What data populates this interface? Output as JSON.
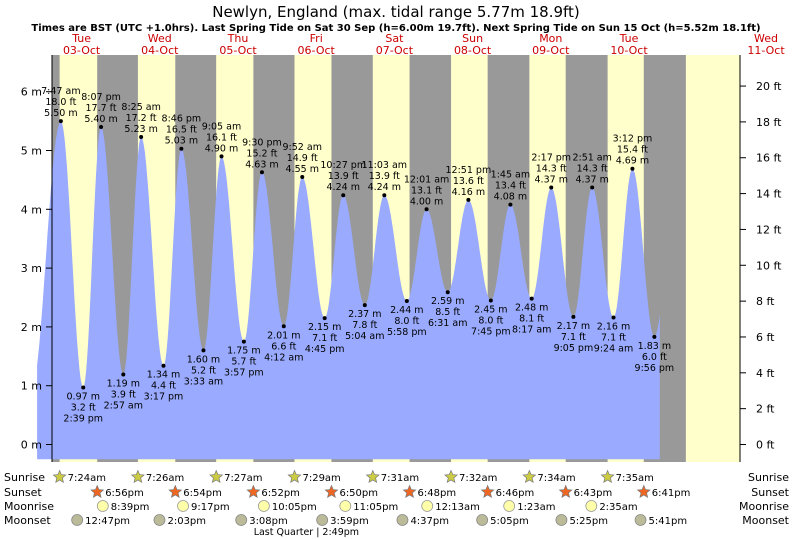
{
  "chart_data": {
    "type": "area",
    "title": "Newlyn, England (max. tidal range 5.77m 18.9ft)",
    "subtitle": "Times are BST (UTC +1.0hrs). Last Spring Tide on Sat 30 Sep (h=6.00m 19.7ft). Next Spring Tide on Sun 15 Oct (h=5.52m 18.1ft)",
    "days": [
      {
        "dow": "Tue",
        "date": "03-Oct"
      },
      {
        "dow": "Wed",
        "date": "04-Oct"
      },
      {
        "dow": "Thu",
        "date": "05-Oct"
      },
      {
        "dow": "Fri",
        "date": "06-Oct"
      },
      {
        "dow": "Sat",
        "date": "07-Oct"
      },
      {
        "dow": "Sun",
        "date": "08-Oct"
      },
      {
        "dow": "Mon",
        "date": "09-Oct"
      },
      {
        "dow": "Tue",
        "date": "10-Oct"
      },
      {
        "dow": "Wed",
        "date": "11-Oct"
      }
    ],
    "y_left_ticks": [
      "0 m",
      "1 m",
      "2 m",
      "3 m",
      "4 m",
      "5 m",
      "6 m"
    ],
    "y_right_ticks": [
      "0 ft",
      "2 ft",
      "4 ft",
      "6 ft",
      "8 ft",
      "10 ft",
      "12 ft",
      "14 ft",
      "16 ft",
      "18 ft",
      "20 ft"
    ],
    "ylim_m": [
      -0.05,
      6.6
    ],
    "tides": [
      {
        "day": 0,
        "hour": 7.783,
        "type": "high",
        "time": "7:47 am",
        "ft": "18.0 ft",
        "m": "5.50 m",
        "h": 5.5
      },
      {
        "day": 0,
        "hour": 14.65,
        "type": "low",
        "time": "2:39 pm",
        "ft": "3.2 ft",
        "m": "0.97 m",
        "h": 0.97
      },
      {
        "day": 0,
        "hour": 20.117,
        "type": "high",
        "time": "8:07 pm",
        "ft": "17.7 ft",
        "m": "5.40 m",
        "h": 5.4
      },
      {
        "day": 1,
        "hour": 2.95,
        "type": "low",
        "time": "2:57 am",
        "ft": "3.9 ft",
        "m": "1.19 m",
        "h": 1.19
      },
      {
        "day": 1,
        "hour": 8.417,
        "type": "high",
        "time": "8:25 am",
        "ft": "17.2 ft",
        "m": "5.23 m",
        "h": 5.23
      },
      {
        "day": 1,
        "hour": 15.283,
        "type": "low",
        "time": "3:17 pm",
        "ft": "4.4 ft",
        "m": "1.34 m",
        "h": 1.34
      },
      {
        "day": 1,
        "hour": 20.767,
        "type": "high",
        "time": "8:46 pm",
        "ft": "16.5 ft",
        "m": "5.03 m",
        "h": 5.03
      },
      {
        "day": 2,
        "hour": 3.55,
        "type": "low",
        "time": "3:33 am",
        "ft": "5.2 ft",
        "m": "1.60 m",
        "h": 1.6
      },
      {
        "day": 2,
        "hour": 9.083,
        "type": "high",
        "time": "9:05 am",
        "ft": "16.1 ft",
        "m": "4.90 m",
        "h": 4.9
      },
      {
        "day": 2,
        "hour": 15.95,
        "type": "low",
        "time": "3:57 pm",
        "ft": "5.7 ft",
        "m": "1.75 m",
        "h": 1.75
      },
      {
        "day": 2,
        "hour": 21.5,
        "type": "high",
        "time": "9:30 pm",
        "ft": "15.2 ft",
        "m": "4.63 m",
        "h": 4.63
      },
      {
        "day": 3,
        "hour": 4.2,
        "type": "low",
        "time": "4:12 am",
        "ft": "6.6 ft",
        "m": "2.01 m",
        "h": 2.01
      },
      {
        "day": 3,
        "hour": 9.867,
        "type": "high",
        "time": "9:52 am",
        "ft": "14.9 ft",
        "m": "4.55 m",
        "h": 4.55
      },
      {
        "day": 3,
        "hour": 16.75,
        "type": "low",
        "time": "4:45 pm",
        "ft": "7.1 ft",
        "m": "2.15 m",
        "h": 2.15
      },
      {
        "day": 3,
        "hour": 22.45,
        "type": "high",
        "time": "10:27 pm",
        "ft": "13.9 ft",
        "m": "4.24 m",
        "h": 4.24
      },
      {
        "day": 4,
        "hour": 5.067,
        "type": "low",
        "time": "5:04 am",
        "ft": "7.8 ft",
        "m": "2.37 m",
        "h": 2.37
      },
      {
        "day": 4,
        "hour": 11.05,
        "type": "high",
        "time": "11:03 am",
        "ft": "13.9 ft",
        "m": "4.24 m",
        "h": 4.24
      },
      {
        "day": 4,
        "hour": 17.967,
        "type": "low",
        "time": "5:58 pm",
        "ft": "8.0 ft",
        "m": "2.44 m",
        "h": 2.44
      },
      {
        "day": 5,
        "hour": 0.017,
        "type": "high",
        "time": "12:01 am",
        "ft": "13.1 ft",
        "m": "4.00 m",
        "h": 4.0
      },
      {
        "day": 5,
        "hour": 6.517,
        "type": "low",
        "time": "6:31 am",
        "ft": "8.5 ft",
        "m": "2.59 m",
        "h": 2.59
      },
      {
        "day": 5,
        "hour": 12.85,
        "type": "high",
        "time": "12:51 pm",
        "ft": "13.6 ft",
        "m": "4.16 m",
        "h": 4.16
      },
      {
        "day": 5,
        "hour": 19.75,
        "type": "low",
        "time": "7:45 pm",
        "ft": "8.0 ft",
        "m": "2.45 m",
        "h": 2.45
      },
      {
        "day": 6,
        "hour": 1.75,
        "type": "high",
        "time": "1:45 am",
        "ft": "13.4 ft",
        "m": "4.08 m",
        "h": 4.08
      },
      {
        "day": 6,
        "hour": 8.283,
        "type": "low",
        "time": "8:17 am",
        "ft": "8.1 ft",
        "m": "2.48 m",
        "h": 2.48
      },
      {
        "day": 6,
        "hour": 14.283,
        "type": "high",
        "time": "2:17 pm",
        "ft": "14.3 ft",
        "m": "4.37 m",
        "h": 4.37
      },
      {
        "day": 6,
        "hour": 21.083,
        "type": "low",
        "time": "9:05 pm",
        "ft": "7.1 ft",
        "m": "2.17 m",
        "h": 2.17
      },
      {
        "day": 7,
        "hour": 2.85,
        "type": "high",
        "time": "2:51 am",
        "ft": "14.3 ft",
        "m": "4.37 m",
        "h": 4.37
      },
      {
        "day": 7,
        "hour": 9.4,
        "type": "low",
        "time": "9:24 am",
        "ft": "7.1 ft",
        "m": "2.16 m",
        "h": 2.16
      },
      {
        "day": 7,
        "hour": 15.2,
        "type": "high",
        "time": "3:12 pm",
        "ft": "15.4 ft",
        "m": "4.69 m",
        "h": 4.69
      },
      {
        "day": 7,
        "hour": 21.933,
        "type": "low",
        "time": "9:56 pm",
        "ft": "6.0 ft",
        "m": "1.83 m",
        "h": 1.83
      }
    ],
    "daylight": [
      {
        "day": 0,
        "rise_hour": 7.4,
        "set_hour": 18.933
      },
      {
        "day": 1,
        "rise_hour": 7.433,
        "set_hour": 18.9
      },
      {
        "day": 2,
        "rise_hour": 7.45,
        "set_hour": 18.867
      },
      {
        "day": 3,
        "rise_hour": 7.483,
        "set_hour": 18.833
      },
      {
        "day": 4,
        "rise_hour": 7.517,
        "set_hour": 18.8
      },
      {
        "day": 5,
        "rise_hour": 7.533,
        "set_hour": 18.767
      },
      {
        "day": 6,
        "rise_hour": 7.567,
        "set_hour": 18.717
      },
      {
        "day": 7,
        "rise_hour": 7.583,
        "set_hour": 18.683
      }
    ],
    "astro_rows": [
      {
        "label": "Sunrise",
        "kind": "sunrise",
        "events": [
          {
            "day": 0,
            "hour": 7.4,
            "time": "7:24am"
          },
          {
            "day": 1,
            "hour": 7.433,
            "time": "7:26am"
          },
          {
            "day": 2,
            "hour": 7.45,
            "time": "7:27am"
          },
          {
            "day": 3,
            "hour": 7.483,
            "time": "7:29am"
          },
          {
            "day": 4,
            "hour": 7.517,
            "time": "7:31am"
          },
          {
            "day": 5,
            "hour": 7.533,
            "time": "7:32am"
          },
          {
            "day": 6,
            "hour": 7.567,
            "time": "7:34am"
          },
          {
            "day": 7,
            "hour": 7.583,
            "time": "7:35am"
          }
        ]
      },
      {
        "label": "Sunset",
        "kind": "sunset",
        "events": [
          {
            "day": 0,
            "hour": 18.933,
            "time": "6:56pm"
          },
          {
            "day": 1,
            "hour": 18.9,
            "time": "6:54pm"
          },
          {
            "day": 2,
            "hour": 18.867,
            "time": "6:52pm"
          },
          {
            "day": 3,
            "hour": 18.833,
            "time": "6:50pm"
          },
          {
            "day": 4,
            "hour": 18.8,
            "time": "6:48pm"
          },
          {
            "day": 5,
            "hour": 18.767,
            "time": "6:46pm"
          },
          {
            "day": 6,
            "hour": 18.717,
            "time": "6:43pm"
          },
          {
            "day": 7,
            "hour": 18.683,
            "time": "6:41pm"
          }
        ]
      },
      {
        "label": "Moonrise",
        "kind": "moonrise",
        "events": [
          {
            "day": 0,
            "hour": 20.65,
            "time": "8:39pm"
          },
          {
            "day": 1,
            "hour": 21.283,
            "time": "9:17pm"
          },
          {
            "day": 2,
            "hour": 22.083,
            "time": "10:05pm"
          },
          {
            "day": 3,
            "hour": 23.083,
            "time": "11:05pm"
          },
          {
            "day": 5,
            "hour": 0.217,
            "time": "12:13am"
          },
          {
            "day": 6,
            "hour": 1.383,
            "time": "1:23am"
          },
          {
            "day": 7,
            "hour": 2.583,
            "time": "2:35am"
          }
        ]
      },
      {
        "label": "Moonset",
        "kind": "moonset",
        "events": [
          {
            "day": 0,
            "hour": 12.783,
            "time": "12:47pm"
          },
          {
            "day": 1,
            "hour": 14.05,
            "time": "2:03pm"
          },
          {
            "day": 2,
            "hour": 15.133,
            "time": "3:08pm"
          },
          {
            "day": 3,
            "hour": 15.983,
            "time": "3:59pm"
          },
          {
            "day": 4,
            "hour": 16.617,
            "time": "4:37pm"
          },
          {
            "day": 5,
            "hour": 17.083,
            "time": "5:05pm"
          },
          {
            "day": 6,
            "hour": 17.417,
            "time": "5:25pm"
          },
          {
            "day": 7,
            "hour": 17.683,
            "time": "5:41pm"
          }
        ]
      }
    ],
    "moon_phase": {
      "text": "Last Quarter | 2:49pm",
      "day": 3,
      "hour": 14.817
    },
    "colors": {
      "day": "#ffffcc",
      "night": "#999999",
      "water": "#99aaff",
      "sunrise_star": "#cccc44",
      "sunset_star": "#ee6622",
      "moonrise_disc": "#ffffaa",
      "moonset_disc": "#bbbb99"
    }
  }
}
